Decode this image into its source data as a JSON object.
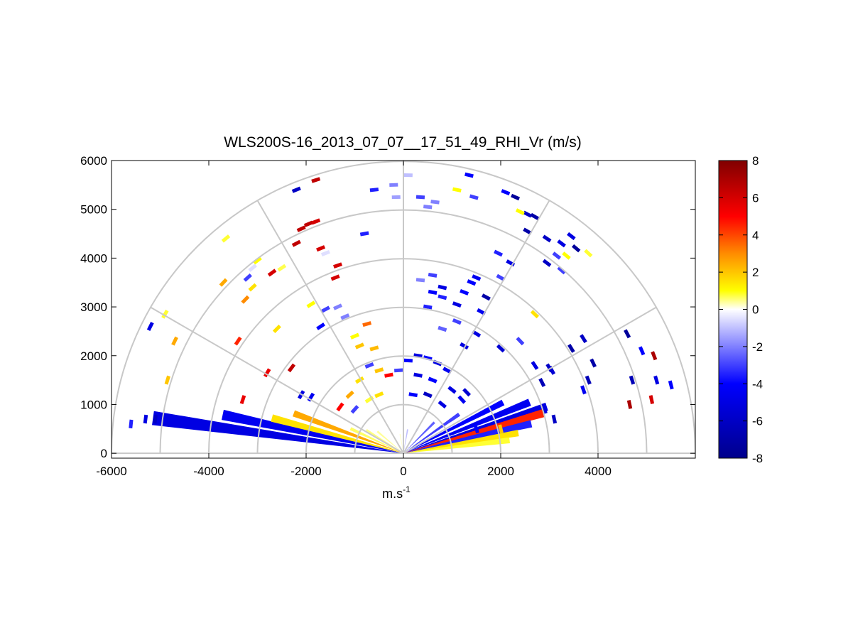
{
  "chart_data": {
    "type": "heatmap",
    "title": "WLS200S-16_2013_07_07__17_51_49_RHI_Vr (m/s)",
    "xlabel": "m.s",
    "xlabel_superscript": "-1",
    "ylabel": "",
    "xlim": [
      -6000,
      6000
    ],
    "ylim": [
      -100,
      6000
    ],
    "x_ticks": [
      -6000,
      -4000,
      -2000,
      0,
      2000,
      4000
    ],
    "x_tick_labels": [
      "-6000",
      "-4000",
      "-2000",
      "0",
      "2000",
      "4000"
    ],
    "y_ticks": [
      0,
      1000,
      2000,
      3000,
      4000,
      5000,
      6000
    ],
    "y_tick_labels": [
      "0",
      "1000",
      "2000",
      "3000",
      "4000",
      "5000",
      "6000"
    ],
    "grid": true,
    "polar_range_rings": [
      1000,
      2000,
      3000,
      4000,
      5000,
      6000
    ],
    "polar_spoke_angles_deg": [
      0,
      30,
      60,
      90,
      120,
      150,
      180
    ],
    "colorbar": {
      "range": [
        -8,
        8
      ],
      "ticks": [
        8,
        6,
        4,
        2,
        0,
        -2,
        -4,
        -6,
        -8
      ],
      "tick_labels": [
        "8",
        "6",
        "4",
        "2",
        "0",
        "-2",
        "-4",
        "-6",
        "-8"
      ],
      "colors": [
        "#00008b",
        "#0000ff",
        "#ffffff",
        "#ffff00",
        "#ff8c00",
        "#ff0000",
        "#800000"
      ],
      "stops": [
        -8,
        -4,
        0,
        1,
        3,
        5,
        8
      ]
    },
    "wedges": [
      {
        "angle_deg": 172,
        "r_start": 0,
        "r_end": 5200,
        "value": -5.0
      },
      {
        "angle_deg": 168,
        "r_start": 0,
        "r_end": 3800,
        "value": -4.5
      },
      {
        "angle_deg": 165,
        "r_start": 0,
        "r_end": 2800,
        "value": 1.5
      },
      {
        "angle_deg": 160,
        "r_start": 0,
        "r_end": 2400,
        "value": 2.5
      },
      {
        "angle_deg": 155,
        "r_start": 0,
        "r_end": 1200,
        "value": 0.6
      },
      {
        "angle_deg": 148,
        "r_start": 0,
        "r_end": 900,
        "value": 0.5
      },
      {
        "angle_deg": 140,
        "r_start": 0,
        "r_end": 700,
        "value": 0.4
      },
      {
        "angle_deg": 120,
        "r_start": 0,
        "r_end": 500,
        "value": 0.3
      },
      {
        "angle_deg": 100,
        "r_start": 0,
        "r_end": 400,
        "value": 0.2
      },
      {
        "angle_deg": 80,
        "r_start": 0,
        "r_end": 500,
        "value": -1.0
      },
      {
        "angle_deg": 60,
        "r_start": 0,
        "r_end": 600,
        "value": -1.5
      },
      {
        "angle_deg": 45,
        "r_start": 0,
        "r_end": 900,
        "value": -2.5
      },
      {
        "angle_deg": 35,
        "r_start": 0,
        "r_end": 1400,
        "value": -3.0
      },
      {
        "angle_deg": 27,
        "r_start": 0,
        "r_end": 2300,
        "value": -4.0
      },
      {
        "angle_deg": 22,
        "r_start": 0,
        "r_end": 2800,
        "value": -4.5
      },
      {
        "angle_deg": 18,
        "r_start": 0,
        "r_end": 3100,
        "value": -5.0
      },
      {
        "angle_deg": 16,
        "r_start": 0,
        "r_end": 3000,
        "value": 4.5
      },
      {
        "angle_deg": 13,
        "r_start": 0,
        "r_end": 2700,
        "value": -3.5
      },
      {
        "angle_deg": 10,
        "r_start": 0,
        "r_end": 2400,
        "value": 1.5
      },
      {
        "angle_deg": 7,
        "r_start": 0,
        "r_end": 2200,
        "value": 0.8
      }
    ],
    "points": [
      {
        "x": -5600,
        "y": 600,
        "value": -3.5
      },
      {
        "x": -5300,
        "y": 700,
        "value": -5.0
      },
      {
        "x": -5100,
        "y": 700,
        "value": -6.0
      },
      {
        "x": -5200,
        "y": 2600,
        "value": -5.0
      },
      {
        "x": -4900,
        "y": 2850,
        "value": 0.8
      },
      {
        "x": -4700,
        "y": 2300,
        "value": 2.5
      },
      {
        "x": -4850,
        "y": 1500,
        "value": 2.0
      },
      {
        "x": -3300,
        "y": 1100,
        "value": 5.5
      },
      {
        "x": -3400,
        "y": 2300,
        "value": 4.5
      },
      {
        "x": -3250,
        "y": 3150,
        "value": 3.0
      },
      {
        "x": -3100,
        "y": 3400,
        "value": 1.5
      },
      {
        "x": -3200,
        "y": 3600,
        "value": -3.0
      },
      {
        "x": -3100,
        "y": 3800,
        "value": -0.5
      },
      {
        "x": -3000,
        "y": 3950,
        "value": 1.0
      },
      {
        "x": -3700,
        "y": 3500,
        "value": 2.5
      },
      {
        "x": -3650,
        "y": 4400,
        "value": 0.8
      },
      {
        "x": -2700,
        "y": 3700,
        "value": 6.0
      },
      {
        "x": -2500,
        "y": 3800,
        "value": 0.7
      },
      {
        "x": -2200,
        "y": 4300,
        "value": 6.5
      },
      {
        "x": -2100,
        "y": 4600,
        "value": 6.5
      },
      {
        "x": -1950,
        "y": 4700,
        "value": 6.5
      },
      {
        "x": -1800,
        "y": 4750,
        "value": 6.0
      },
      {
        "x": -1600,
        "y": 4100,
        "value": -0.5
      },
      {
        "x": -1700,
        "y": 4200,
        "value": 6.0
      },
      {
        "x": -1350,
        "y": 3850,
        "value": 6.0
      },
      {
        "x": -1400,
        "y": 3600,
        "value": 6.0
      },
      {
        "x": -1900,
        "y": 3050,
        "value": 1.0
      },
      {
        "x": -1600,
        "y": 2950,
        "value": -3.0
      },
      {
        "x": -1700,
        "y": 2600,
        "value": -4.0
      },
      {
        "x": -2600,
        "y": 2550,
        "value": 1.5
      },
      {
        "x": -2300,
        "y": 1750,
        "value": 6.5
      },
      {
        "x": -2800,
        "y": 1650,
        "value": 5.5
      },
      {
        "x": -2100,
        "y": 1200,
        "value": -5.0
      },
      {
        "x": -1900,
        "y": 1150,
        "value": -4.5
      },
      {
        "x": -1200,
        "y": 2800,
        "value": -2.0
      },
      {
        "x": -1000,
        "y": 2400,
        "value": 1.0
      },
      {
        "x": -900,
        "y": 2200,
        "value": 2.0
      },
      {
        "x": -600,
        "y": 2150,
        "value": 2.2
      },
      {
        "x": -1350,
        "y": 3000,
        "value": -2.0
      },
      {
        "x": -750,
        "y": 2650,
        "value": 3.5
      },
      {
        "x": -1800,
        "y": 5600,
        "value": 6.5
      },
      {
        "x": -2200,
        "y": 5400,
        "value": -6.0
      },
      {
        "x": -600,
        "y": 5400,
        "value": -3.5
      },
      {
        "x": -200,
        "y": 5500,
        "value": -2.0
      },
      {
        "x": 100,
        "y": 5700,
        "value": -1.0
      },
      {
        "x": 350,
        "y": 5250,
        "value": -3.0
      },
      {
        "x": -800,
        "y": 4500,
        "value": -3.5
      },
      {
        "x": -150,
        "y": 5250,
        "value": -1.5
      },
      {
        "x": 500,
        "y": 5050,
        "value": -2.0
      },
      {
        "x": 650,
        "y": 5150,
        "value": -2.0
      },
      {
        "x": 1100,
        "y": 5400,
        "value": 1.0
      },
      {
        "x": 1350,
        "y": 5700,
        "value": -4.0
      },
      {
        "x": 1450,
        "y": 5250,
        "value": -3.0
      },
      {
        "x": 2100,
        "y": 5350,
        "value": -4.0
      },
      {
        "x": 2300,
        "y": 5250,
        "value": -7.5
      },
      {
        "x": 2550,
        "y": 4900,
        "value": -6.0
      },
      {
        "x": 2700,
        "y": 4850,
        "value": -7.0
      },
      {
        "x": 2400,
        "y": 4950,
        "value": 1.0
      },
      {
        "x": 2550,
        "y": 4550,
        "value": -7.0
      },
      {
        "x": 2950,
        "y": 4400,
        "value": -6.0
      },
      {
        "x": 3250,
        "y": 4300,
        "value": -5.0
      },
      {
        "x": 3550,
        "y": 4200,
        "value": -7.5
      },
      {
        "x": 3800,
        "y": 4100,
        "value": 0.8
      },
      {
        "x": 3350,
        "y": 4050,
        "value": 1.0
      },
      {
        "x": 3450,
        "y": 4450,
        "value": -5.0
      },
      {
        "x": 3150,
        "y": 4050,
        "value": -3.0
      },
      {
        "x": 2950,
        "y": 3900,
        "value": -6.0
      },
      {
        "x": 3250,
        "y": 3750,
        "value": -3.0
      },
      {
        "x": 1950,
        "y": 4100,
        "value": -3.5
      },
      {
        "x": 2200,
        "y": 3900,
        "value": -5.0
      },
      {
        "x": 2000,
        "y": 3600,
        "value": -3.0
      },
      {
        "x": 1500,
        "y": 3600,
        "value": -4.5
      },
      {
        "x": 1400,
        "y": 3500,
        "value": -4.0
      },
      {
        "x": 1700,
        "y": 3200,
        "value": -7.0
      },
      {
        "x": 1250,
        "y": 3300,
        "value": -4.0
      },
      {
        "x": 1100,
        "y": 3050,
        "value": -5.0
      },
      {
        "x": 800,
        "y": 3200,
        "value": -3.5
      },
      {
        "x": 600,
        "y": 3300,
        "value": -4.0
      },
      {
        "x": 500,
        "y": 3000,
        "value": -3.5
      },
      {
        "x": 350,
        "y": 3550,
        "value": -2.0
      },
      {
        "x": 600,
        "y": 3650,
        "value": -3.0
      },
      {
        "x": 800,
        "y": 3400,
        "value": -5.0
      },
      {
        "x": 1600,
        "y": 2900,
        "value": -4.5
      },
      {
        "x": 1100,
        "y": 2700,
        "value": -3.0
      },
      {
        "x": 800,
        "y": 2550,
        "value": -2.5
      },
      {
        "x": 1250,
        "y": 2200,
        "value": -5.0
      },
      {
        "x": 1500,
        "y": 2450,
        "value": -5.0
      },
      {
        "x": 2000,
        "y": 2150,
        "value": -5.5
      },
      {
        "x": 2400,
        "y": 2300,
        "value": -3.0
      },
      {
        "x": 2700,
        "y": 2850,
        "value": 1.5
      },
      {
        "x": 2700,
        "y": 1800,
        "value": -5.0
      },
      {
        "x": 3000,
        "y": 1750,
        "value": -6.0
      },
      {
        "x": 2850,
        "y": 1450,
        "value": -6.5
      },
      {
        "x": 3050,
        "y": 1700,
        "value": -5.5
      },
      {
        "x": 3450,
        "y": 2150,
        "value": -7.0
      },
      {
        "x": 3700,
        "y": 2350,
        "value": -6.0
      },
      {
        "x": 3900,
        "y": 1850,
        "value": -7.0
      },
      {
        "x": 3700,
        "y": 1300,
        "value": -4.5
      },
      {
        "x": 3800,
        "y": 1500,
        "value": -6.5
      },
      {
        "x": 4600,
        "y": 2450,
        "value": -7.5
      },
      {
        "x": 4700,
        "y": 1500,
        "value": -6.5
      },
      {
        "x": 4900,
        "y": 2100,
        "value": -4.0
      },
      {
        "x": 5200,
        "y": 1500,
        "value": -5.0
      },
      {
        "x": 5500,
        "y": 1400,
        "value": -4.0
      },
      {
        "x": 5150,
        "y": 2000,
        "value": 7.0
      },
      {
        "x": 4650,
        "y": 1000,
        "value": 7.0
      },
      {
        "x": 5100,
        "y": 1100,
        "value": 6.0
      },
      {
        "x": 3100,
        "y": 700,
        "value": -6.0
      },
      {
        "x": 2900,
        "y": 900,
        "value": -5.0
      },
      {
        "x": 2000,
        "y": 500,
        "value": 2.0
      },
      {
        "x": 1500,
        "y": 500,
        "value": -4.0
      },
      {
        "x": -100,
        "y": 1700,
        "value": -3.0
      },
      {
        "x": 100,
        "y": 1900,
        "value": -4.0
      },
      {
        "x": 300,
        "y": 2000,
        "value": -5.0
      },
      {
        "x": 500,
        "y": 1950,
        "value": -4.0
      },
      {
        "x": 700,
        "y": 1850,
        "value": -5.0
      },
      {
        "x": 900,
        "y": 1700,
        "value": -4.5
      },
      {
        "x": -300,
        "y": 1600,
        "value": 5.0
      },
      {
        "x": -500,
        "y": 1700,
        "value": 2.0
      },
      {
        "x": -700,
        "y": 1800,
        "value": -3.0
      },
      {
        "x": -900,
        "y": 1500,
        "value": 1.5
      },
      {
        "x": -1100,
        "y": 1200,
        "value": 2.5
      },
      {
        "x": 300,
        "y": 1600,
        "value": -5.0
      },
      {
        "x": 600,
        "y": 1500,
        "value": -4.0
      },
      {
        "x": 1000,
        "y": 1300,
        "value": -5.0
      },
      {
        "x": 1200,
        "y": 1100,
        "value": -4.5
      },
      {
        "x": 1300,
        "y": 1250,
        "value": -5.5
      },
      {
        "x": -1300,
        "y": 950,
        "value": 5.0
      },
      {
        "x": -1000,
        "y": 900,
        "value": -3.0
      },
      {
        "x": -700,
        "y": 1100,
        "value": 0.8
      },
      {
        "x": -500,
        "y": 1200,
        "value": 1.5
      },
      {
        "x": 200,
        "y": 1200,
        "value": -4.0
      },
      {
        "x": 500,
        "y": 1200,
        "value": -6.0
      },
      {
        "x": 800,
        "y": 1000,
        "value": -5.0
      }
    ]
  }
}
